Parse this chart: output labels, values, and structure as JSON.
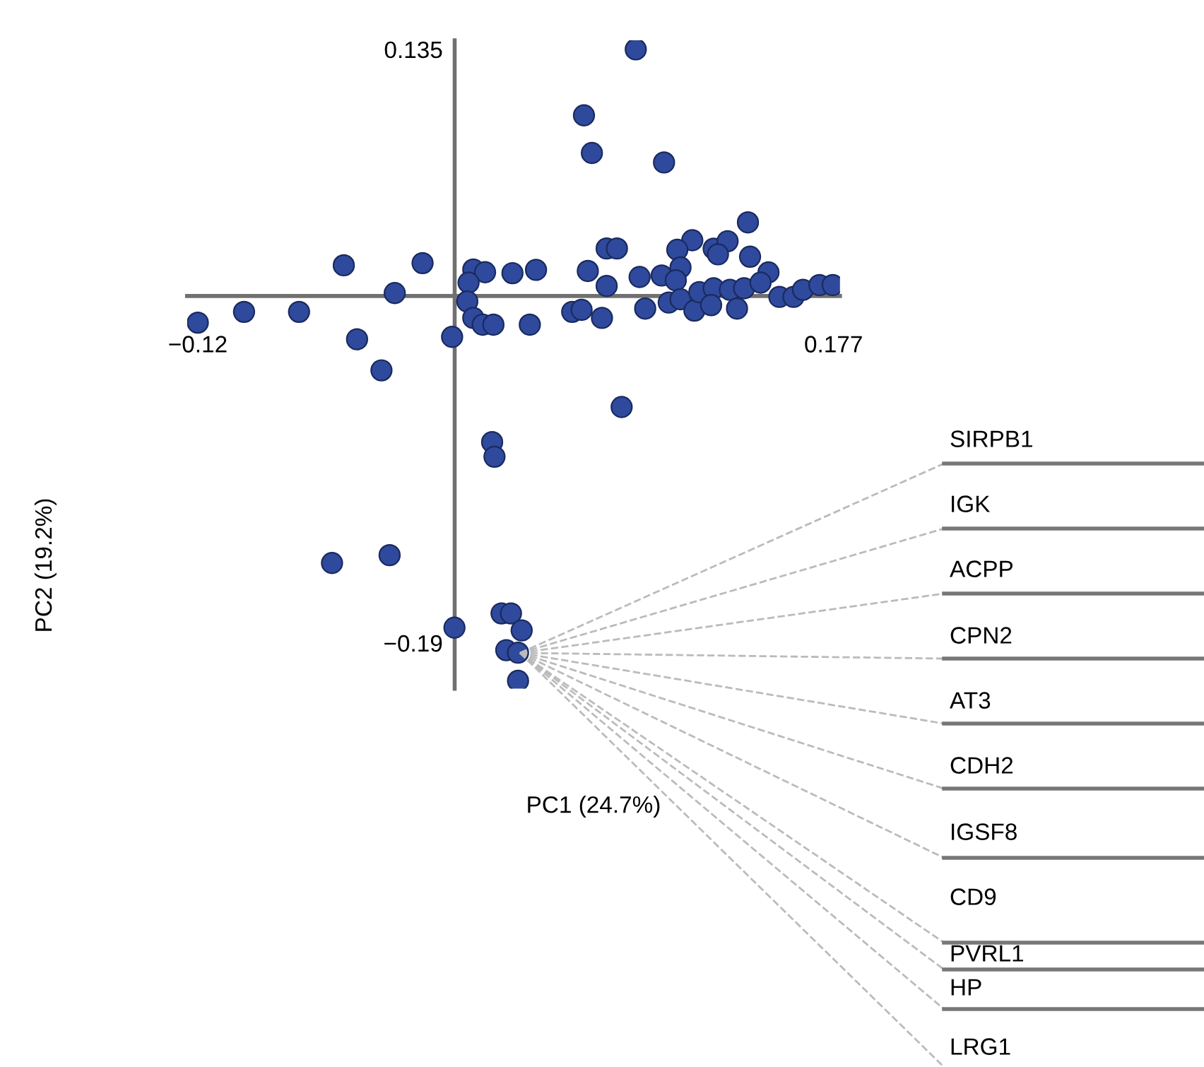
{
  "chart_data": {
    "type": "scatter",
    "xlabel": "PC1 (24.7%)",
    "ylabel": "PC2 (19.2%)",
    "xlim": [
      -0.125,
      0.18
    ],
    "ylim": [
      -0.215,
      0.14
    ],
    "xticks": [
      {
        "value": -0.12,
        "label": "−0.12"
      },
      0.177
    ],
    "yticks": [
      {
        "value": -0.19,
        "label": "−0.19"
      },
      0.135
    ],
    "grid": false,
    "marker": "circle",
    "series": [
      {
        "color": "#2f4a9c",
        "x": [
          0.0846,
          0.0604,
          0.0641,
          0.0978,
          0.137,
          0.111,
          0.104,
          0.121,
          0.1275,
          0.123,
          0.138,
          0.071,
          0.0758,
          0.1466,
          0.1055,
          -0.0518,
          -0.015,
          -0.028,
          0.0087,
          0.0142,
          0.027,
          0.038,
          0.0622,
          0.071,
          0.0864,
          0.0967,
          0.1033,
          0.0065,
          0.0059,
          0.0087,
          0.0131,
          0.0181,
          0.0351,
          0.0549,
          0.0593,
          0.0688,
          0.089,
          0.1,
          0.1055,
          0.112,
          0.1143,
          0.121,
          0.1198,
          0.1286,
          0.1319,
          0.1352,
          0.1429,
          0.1517,
          0.1583,
          0.1627,
          0.1704,
          0.1766,
          -0.12,
          -0.0984,
          -0.0727,
          -0.0456,
          -0.0012,
          -0.0342,
          0.078,
          0.0175,
          0.0186,
          -0.0573,
          -0.0304,
          -0.0001,
          0.0219,
          0.0263,
          0.0313,
          0.0241,
          0.0296,
          0.0296
        ],
        "values": [
          0.135,
          0.0989,
          0.0783,
          0.0731,
          0.0403,
          0.0305,
          0.0253,
          0.0259,
          0.03,
          0.0228,
          0.0215,
          0.026,
          0.026,
          0.0129,
          0.0156,
          0.0168,
          0.018,
          0.0016,
          0.0145,
          0.013,
          0.0125,
          0.0143,
          0.0137,
          0.0055,
          0.0104,
          0.0112,
          0.0086,
          0.0073,
          -0.003,
          -0.012,
          -0.0157,
          -0.0157,
          -0.0157,
          -0.0087,
          -0.0076,
          -0.012,
          -0.0069,
          -0.0036,
          -0.0018,
          -0.008,
          0.0021,
          0.0042,
          -0.005,
          0.0034,
          -0.0069,
          0.0042,
          0.0073,
          -0.0005,
          -0.0005,
          0.0034,
          0.006,
          0.006,
          -0.0146,
          -0.0087,
          -0.0087,
          -0.0237,
          -0.0224,
          -0.0407,
          -0.0608,
          -0.08,
          -0.088,
          -0.1462,
          -0.1419,
          -0.1816,
          -0.1738,
          -0.1738,
          -0.1831,
          -0.1939,
          -0.1953,
          -0.2107
        ]
      }
    ],
    "annotations": [
      "SIRPB1",
      "IGK",
      "ACPP",
      "CPN2",
      "AT3",
      "CDH2",
      "IGSF8",
      "CD9",
      "PVRL1",
      "HP",
      "LRG1"
    ]
  }
}
